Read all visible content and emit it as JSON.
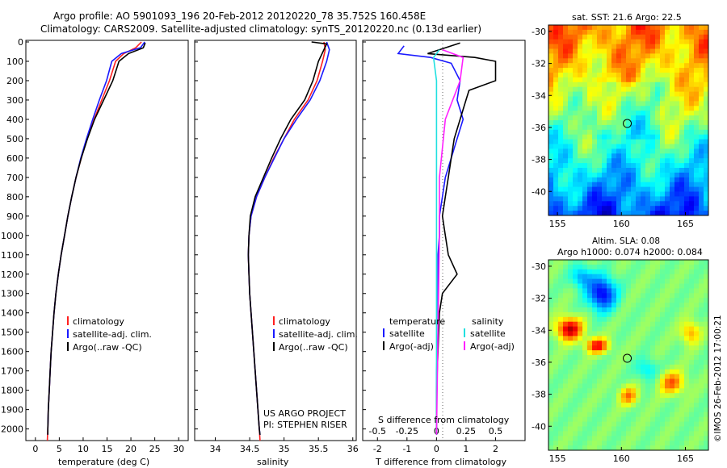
{
  "header": {
    "line1": "Argo profile: AO 5901093_196 20-Feb-2012 20120220_78 35.752S 160.458E",
    "line2": "Climatology: CARS2009. Satellite-adjusted climatology: synTS_20120220.nc (0.13d earlier)"
  },
  "colors": {
    "climatology": "#ff2020",
    "satellite": "#1a1aff",
    "argo": "#000000",
    "sal_satellite": "#20e0e0",
    "sal_argo": "#ff20ff"
  },
  "depth_ticks": [
    0,
    100,
    200,
    300,
    400,
    500,
    600,
    700,
    800,
    900,
    1000,
    1100,
    1200,
    1300,
    1400,
    1500,
    1600,
    1700,
    1800,
    1900,
    2000
  ],
  "temp_panel": {
    "xlabel": "temperature (deg C)",
    "xticks": [
      "0",
      "5",
      "10",
      "15",
      "20",
      "25",
      "30"
    ],
    "legend": [
      "climatology",
      "satellite-adj. clim.",
      "Argo(..raw -QC)"
    ]
  },
  "sal_panel": {
    "xlabel": "salinity",
    "xticks": [
      "34",
      "34.5",
      "35",
      "35.5",
      "36"
    ],
    "legend": [
      "climatology",
      "satellite-adj. clim.",
      "Argo(..raw -QC)"
    ],
    "note1": "US ARGO PROJECT",
    "note2": "PI: STEPHEN RISER"
  },
  "diff_panel": {
    "top_label": "S difference from climatology",
    "s_ticks": [
      "-0.5",
      "-0.25",
      "0",
      "0.25",
      "0.5"
    ],
    "xlabel": "T difference from climatology",
    "t_ticks": [
      "-2",
      "-1",
      "0",
      "1",
      "2"
    ],
    "legend_temp_title": "temperature",
    "legend_sal_title": "salinity",
    "legend_items": [
      "satellite",
      "Argo(-adj)",
      "satellite",
      "Argo(-adj)"
    ]
  },
  "sst_map": {
    "title": "sat. SST: 21.6  Argo: 22.5",
    "yticks": [
      "-30",
      "-32",
      "-34",
      "-36",
      "-38",
      "-40"
    ],
    "xticks": [
      "155",
      "160",
      "165"
    ]
  },
  "sla_map": {
    "title1": "Altim. SLA: 0.08",
    "title2": "Argo h1000: 0.074  h2000: 0.084",
    "yticks": [
      "-30",
      "-32",
      "-34",
      "-36",
      "-38",
      "-40"
    ],
    "xticks": [
      "155",
      "160",
      "165"
    ]
  },
  "credit": "©IMOS 26-Feb-2012 17:00:21",
  "chart_data": [
    {
      "type": "line",
      "xlabel": "temperature (deg C)",
      "xlim": [
        -2,
        32
      ],
      "ylim": [
        2060,
        0
      ],
      "series": [
        {
          "name": "climatology",
          "points": [
            [
              22.2,
              0
            ],
            [
              21,
              30
            ],
            [
              18.5,
              60
            ],
            [
              16.8,
              100
            ],
            [
              15.5,
              200
            ],
            [
              13.9,
              300
            ],
            [
              12.3,
              400
            ],
            [
              10.8,
              500
            ],
            [
              9.6,
              600
            ],
            [
              8.5,
              700
            ],
            [
              7.6,
              800
            ],
            [
              6.8,
              900
            ],
            [
              6.1,
              1000
            ],
            [
              5.4,
              1100
            ],
            [
              4.8,
              1200
            ],
            [
              4.3,
              1300
            ],
            [
              3.9,
              1400
            ],
            [
              3.6,
              1500
            ],
            [
              3.3,
              1600
            ],
            [
              3.1,
              1700
            ],
            [
              2.9,
              1800
            ],
            [
              2.7,
              1900
            ],
            [
              2.6,
              2000
            ],
            [
              2.5,
              2060
            ]
          ]
        },
        {
          "name": "satellite-adj. clim.",
          "points": [
            [
              22.9,
              0
            ],
            [
              22,
              30
            ],
            [
              18,
              60
            ],
            [
              16,
              100
            ],
            [
              14.9,
              200
            ],
            [
              13.4,
              300
            ],
            [
              12.0,
              400
            ],
            [
              10.7,
              500
            ],
            [
              9.5,
              600
            ],
            [
              8.5,
              700
            ],
            [
              7.6,
              800
            ],
            [
              6.8,
              900
            ],
            [
              6.1,
              1000
            ],
            [
              5.4,
              1100
            ],
            [
              4.8,
              1200
            ],
            [
              4.3,
              1300
            ],
            [
              3.9,
              1400
            ],
            [
              3.6,
              1500
            ],
            [
              3.3,
              1600
            ],
            [
              3.1,
              1700
            ],
            [
              2.9,
              1800
            ],
            [
              2.7,
              1900
            ],
            [
              2.6,
              2000
            ],
            [
              2.6,
              2030
            ]
          ]
        },
        {
          "name": "Argo(..raw -QC)",
          "points": [
            [
              23,
              5
            ],
            [
              22.6,
              30
            ],
            [
              19.5,
              60
            ],
            [
              17.5,
              100
            ],
            [
              16.2,
              200
            ],
            [
              14.3,
              300
            ],
            [
              12.4,
              400
            ],
            [
              10.9,
              500
            ],
            [
              9.6,
              600
            ],
            [
              8.5,
              700
            ],
            [
              7.6,
              800
            ],
            [
              6.8,
              900
            ],
            [
              6.1,
              1000
            ],
            [
              5.4,
              1100
            ],
            [
              4.8,
              1200
            ],
            [
              4.3,
              1300
            ],
            [
              3.9,
              1400
            ],
            [
              3.6,
              1500
            ],
            [
              3.3,
              1600
            ],
            [
              3.1,
              1700
            ],
            [
              2.9,
              1800
            ],
            [
              2.7,
              1900
            ],
            [
              2.6,
              2000
            ],
            [
              2.6,
              2030
            ]
          ]
        }
      ]
    },
    {
      "type": "line",
      "xlabel": "salinity",
      "xlim": [
        33.7,
        36.05
      ],
      "ylim": [
        2060,
        0
      ],
      "series": [
        {
          "name": "climatology",
          "points": [
            [
              35.58,
              0
            ],
            [
              35.6,
              40
            ],
            [
              35.56,
              100
            ],
            [
              35.48,
              200
            ],
            [
              35.35,
              300
            ],
            [
              35.15,
              400
            ],
            [
              35.0,
              500
            ],
            [
              34.85,
              600
            ],
            [
              34.72,
              700
            ],
            [
              34.6,
              800
            ],
            [
              34.52,
              900
            ],
            [
              34.49,
              1000
            ],
            [
              34.48,
              1100
            ],
            [
              34.49,
              1200
            ],
            [
              34.5,
              1300
            ],
            [
              34.52,
              1400
            ],
            [
              34.54,
              1500
            ],
            [
              34.56,
              1600
            ],
            [
              34.58,
              1700
            ],
            [
              34.6,
              1800
            ],
            [
              34.62,
              1900
            ],
            [
              34.64,
              2000
            ],
            [
              34.65,
              2060
            ]
          ]
        },
        {
          "name": "satellite-adj. clim.",
          "points": [
            [
              35.62,
              0
            ],
            [
              35.66,
              40
            ],
            [
              35.62,
              100
            ],
            [
              35.52,
              200
            ],
            [
              35.38,
              300
            ],
            [
              35.18,
              400
            ],
            [
              35.0,
              500
            ],
            [
              34.86,
              600
            ],
            [
              34.72,
              700
            ],
            [
              34.6,
              800
            ],
            [
              34.52,
              900
            ],
            [
              34.49,
              1000
            ],
            [
              34.48,
              1100
            ],
            [
              34.49,
              1200
            ],
            [
              34.5,
              1300
            ],
            [
              34.52,
              1400
            ],
            [
              34.54,
              1500
            ],
            [
              34.56,
              1600
            ],
            [
              34.58,
              1700
            ],
            [
              34.6,
              1800
            ],
            [
              34.62,
              1900
            ],
            [
              34.64,
              2000
            ],
            [
              34.65,
              2030
            ]
          ]
        },
        {
          "name": "Argo(..raw -QC)",
          "points": [
            [
              35.4,
              0
            ],
            [
              35.62,
              10
            ],
            [
              35.58,
              40
            ],
            [
              35.5,
              100
            ],
            [
              35.42,
              200
            ],
            [
              35.3,
              300
            ],
            [
              35.1,
              400
            ],
            [
              34.95,
              500
            ],
            [
              34.82,
              600
            ],
            [
              34.7,
              700
            ],
            [
              34.58,
              800
            ],
            [
              34.51,
              900
            ],
            [
              34.49,
              1000
            ],
            [
              34.48,
              1100
            ],
            [
              34.49,
              1200
            ],
            [
              34.5,
              1300
            ],
            [
              34.52,
              1400
            ],
            [
              34.54,
              1500
            ],
            [
              34.56,
              1600
            ],
            [
              34.58,
              1700
            ],
            [
              34.6,
              1800
            ],
            [
              34.62,
              1900
            ],
            [
              34.64,
              2000
            ],
            [
              34.65,
              2030
            ]
          ]
        }
      ]
    },
    {
      "type": "line",
      "xlabel": "T difference from climatology",
      "top_xlabel": "S difference from climatology",
      "xlim": [
        -2.5,
        3.0
      ],
      "ylim": [
        2060,
        0
      ],
      "series": [
        {
          "name": "satellite",
          "group": "temperature",
          "points": [
            [
              -1.1,
              20
            ],
            [
              -1.3,
              60
            ],
            [
              -0.2,
              80
            ],
            [
              0.5,
              110
            ],
            [
              0.8,
              200
            ],
            [
              0.7,
              300
            ],
            [
              0.9,
              400
            ],
            [
              0.7,
              500
            ],
            [
              0.5,
              600
            ],
            [
              0.3,
              700
            ],
            [
              0.2,
              800
            ],
            [
              0.1,
              900
            ],
            [
              0.1,
              1000
            ],
            [
              0.05,
              1100
            ],
            [
              0.05,
              1300
            ],
            [
              0.05,
              1500
            ],
            [
              0,
              1700
            ],
            [
              0,
              1900
            ],
            [
              0,
              2030
            ]
          ]
        },
        {
          "name": "Argo(-adj)",
          "points": [
            [
              0.8,
              5
            ],
            [
              -0.3,
              60
            ],
            [
              1.3,
              80
            ],
            [
              2.0,
              100
            ],
            [
              2.0,
              200
            ],
            [
              1.1,
              250
            ],
            [
              1.0,
              300
            ],
            [
              0.8,
              400
            ],
            [
              0.6,
              500
            ],
            [
              0.5,
              600
            ],
            [
              0.4,
              700
            ],
            [
              0.3,
              800
            ],
            [
              0.2,
              900
            ],
            [
              0.3,
              1000
            ],
            [
              0.4,
              1100
            ],
            [
              0.7,
              1200
            ],
            [
              0.2,
              1300
            ],
            [
              0.1,
              1400
            ],
            [
              0.05,
              1600
            ],
            [
              0,
              1800
            ],
            [
              0,
              2030
            ]
          ]
        },
        {
          "name": "satellite",
          "group": "salinity",
          "points": [
            [
              0.1,
              40
            ],
            [
              -0.1,
              80
            ],
            [
              0,
              200
            ],
            [
              0,
              500
            ],
            [
              0,
              1000
            ],
            [
              0,
              1500
            ],
            [
              0,
              2030
            ]
          ]
        },
        {
          "name": "Argo(-adj)",
          "points": [
            [
              0.2,
              40
            ],
            [
              0.9,
              80
            ],
            [
              0.8,
              200
            ],
            [
              0.3,
              400
            ],
            [
              0.1,
              700
            ],
            [
              0.1,
              1000
            ],
            [
              0.05,
              1500
            ],
            [
              0,
              2030
            ]
          ]
        }
      ]
    },
    {
      "type": "heatmap",
      "title": "sat. SST: 21.6  Argo: 22.5",
      "xlim": [
        154.3,
        166.8
      ],
      "ylim": [
        -41.5,
        -29.6
      ],
      "xticks": [
        155,
        160,
        165
      ],
      "yticks": [
        -30,
        -32,
        -34,
        -36,
        -38,
        -40
      ],
      "marker": [
        160.458,
        -35.752
      ]
    },
    {
      "type": "heatmap",
      "title": "Altim. SLA: 0.08",
      "xlim": [
        154.3,
        166.8
      ],
      "ylim": [
        -41.5,
        -29.6
      ],
      "xticks": [
        155,
        160,
        165
      ],
      "yticks": [
        -30,
        -32,
        -34,
        -36,
        -38,
        -40
      ],
      "marker": [
        160.458,
        -35.752
      ]
    }
  ]
}
